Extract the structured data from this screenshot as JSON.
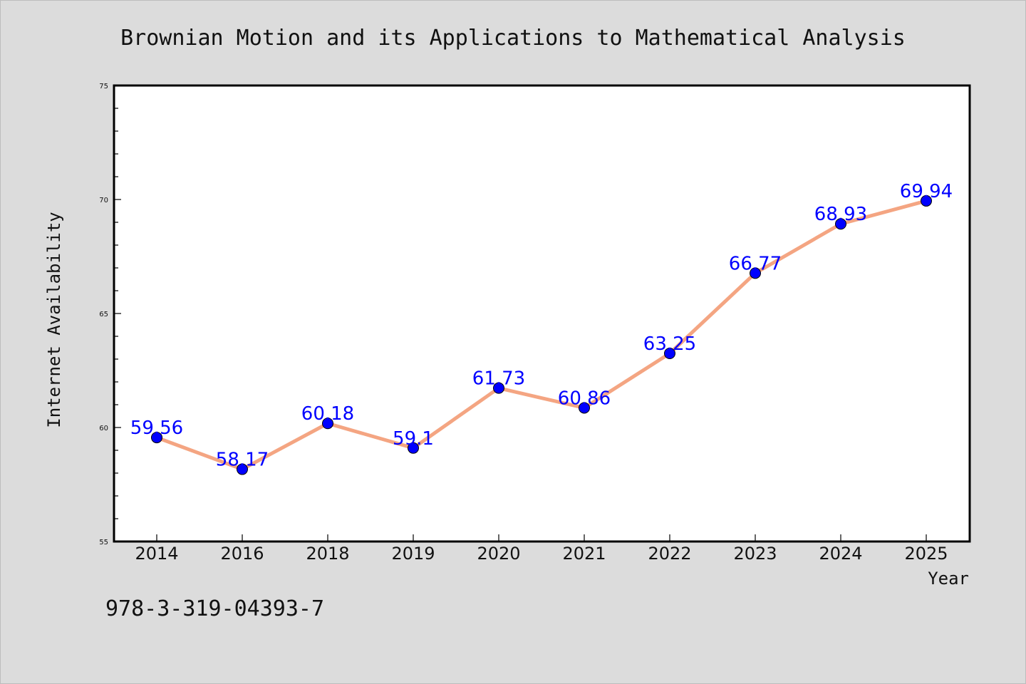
{
  "chart_data": {
    "type": "line",
    "title": "Brownian Motion and its Applications to Mathematical Analysis",
    "xlabel": "Year",
    "ylabel": "Internet Availability",
    "categories": [
      "2014",
      "2016",
      "2018",
      "2019",
      "2020",
      "2021",
      "2022",
      "2023",
      "2024",
      "2025"
    ],
    "series": [
      {
        "values": [
          59.56,
          58.17,
          60.18,
          59.1,
          61.73,
          60.86,
          63.25,
          66.77,
          68.93,
          69.94
        ],
        "labels": [
          "59.56",
          "58.17",
          "60.18",
          "59.1",
          "61.73",
          "60.86",
          "63.25",
          "66.77",
          "68.93",
          "69.94"
        ]
      }
    ],
    "ylim": [
      55,
      75
    ],
    "yticks": [
      "55",
      "60",
      "65",
      "70",
      "75"
    ],
    "grid": false,
    "colors": {
      "line": "#f4a582",
      "marker": "#0000ff",
      "label": "#0000ff",
      "background": "#dcdcdc",
      "plot_background": "#ffffff"
    }
  },
  "footer": {
    "text": "978-3-319-04393-7"
  }
}
